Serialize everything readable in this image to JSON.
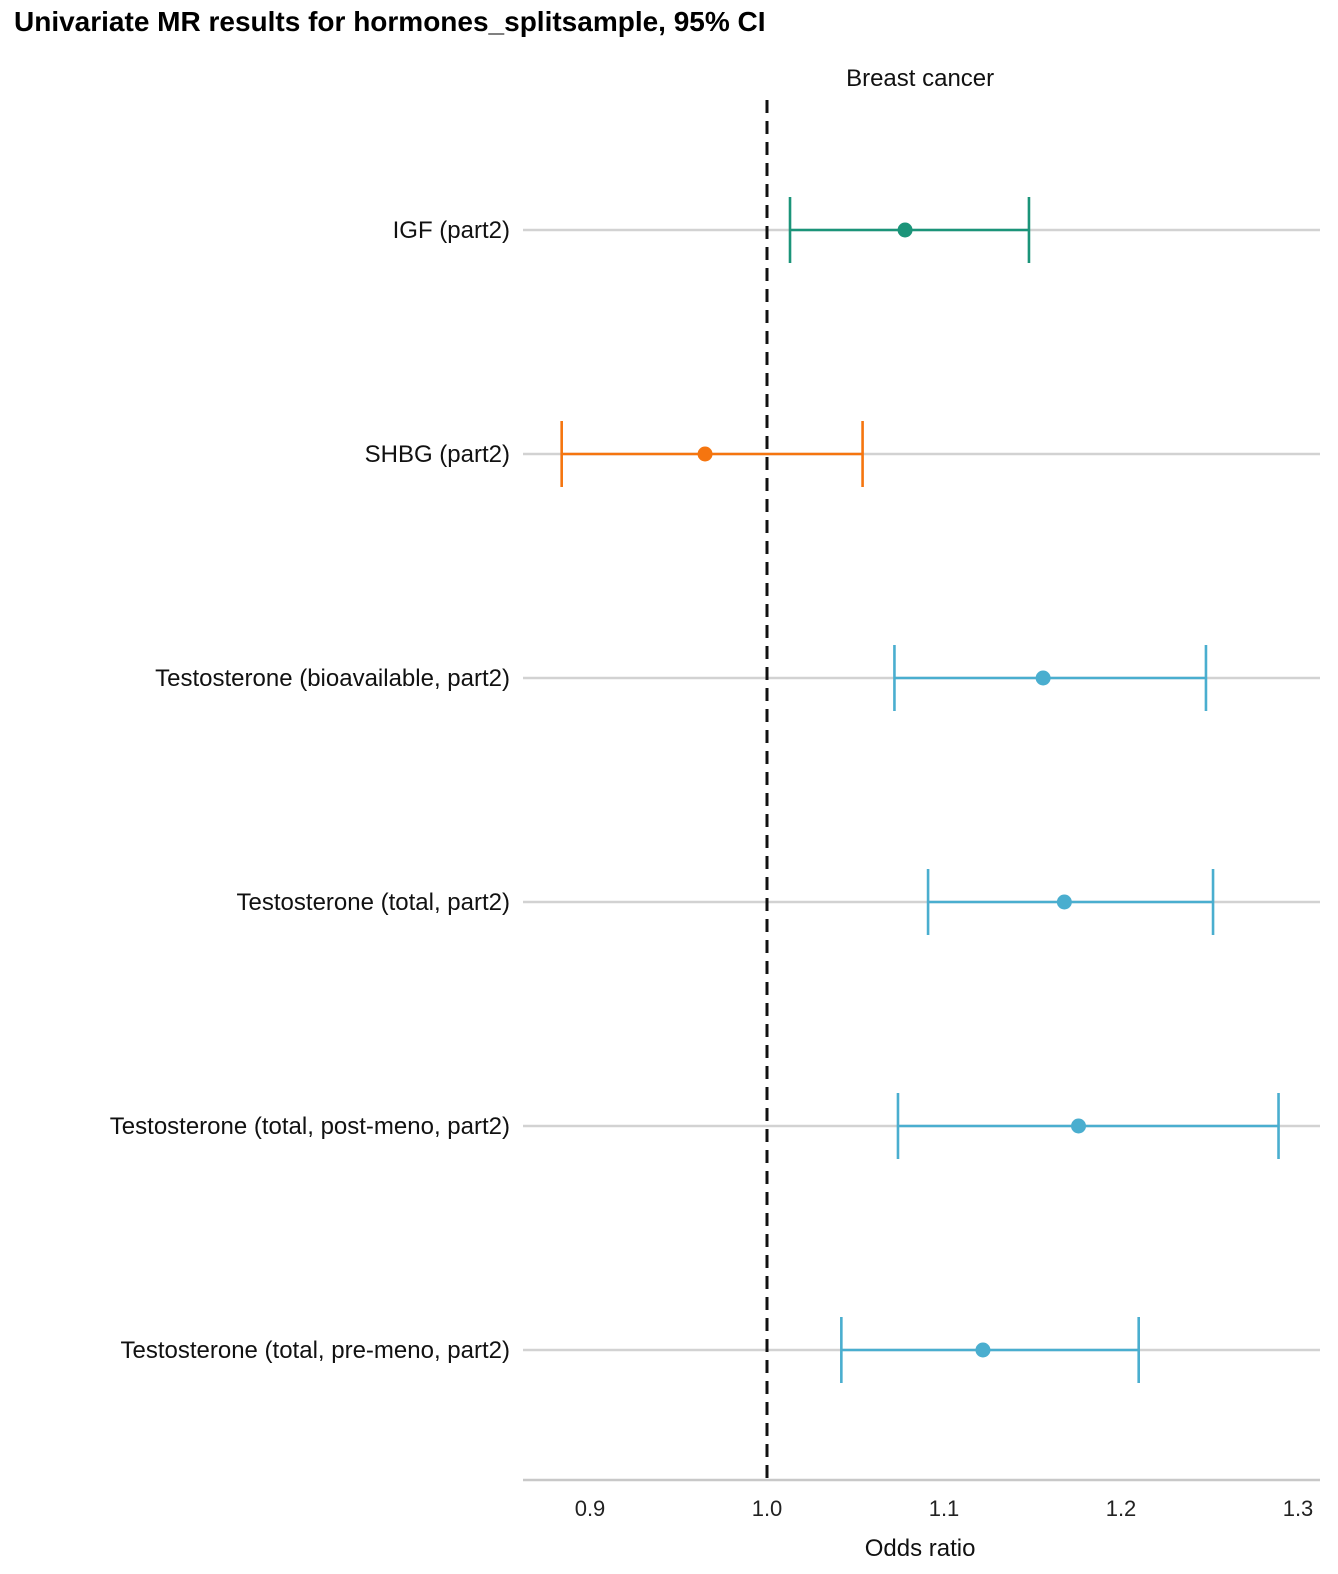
{
  "chart_data": {
    "type": "scatter",
    "title": "Univariate MR results for hormones_splitsample, 95% CI",
    "facet_label": "Breast cancer",
    "xlabel": "Odds ratio",
    "xlim": [
      0.863,
      1.31
    ],
    "xticks": [
      "0.9",
      "1.0",
      "1.1",
      "1.2",
      "1.3"
    ],
    "reference_line": 1.0,
    "grid": "horizontal",
    "series": [
      {
        "label": "IGF (part2)",
        "or": 1.078,
        "lower": 1.013,
        "upper": 1.148,
        "color": "#1b9479"
      },
      {
        "label": "SHBG (part2)",
        "or": 0.965,
        "lower": 0.884,
        "upper": 1.054,
        "color": "#f5750f"
      },
      {
        "label": "Testosterone (bioavailable, part2)",
        "or": 1.156,
        "lower": 1.072,
        "upper": 1.248,
        "color": "#4aaecf"
      },
      {
        "label": "Testosterone (total, part2)",
        "or": 1.168,
        "lower": 1.091,
        "upper": 1.252,
        "color": "#4aaecf"
      },
      {
        "label": "Testosterone (total, post-meno, part2)",
        "or": 1.176,
        "lower": 1.074,
        "upper": 1.289,
        "color": "#4aaecf"
      },
      {
        "label": "Testosterone (total, pre-meno, part2)",
        "or": 1.122,
        "lower": 1.042,
        "upper": 1.21,
        "color": "#4aaecf"
      }
    ]
  }
}
